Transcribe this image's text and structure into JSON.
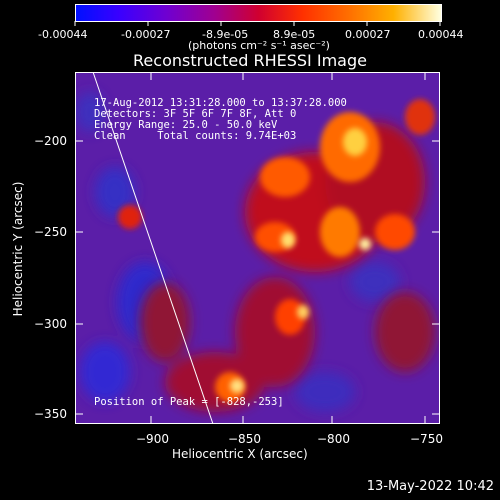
{
  "colorbar": {
    "tick_labels": [
      "-0.00044",
      "-0.00027",
      "-8.9e-05",
      "8.9e-05",
      "0.00027",
      "0.00044"
    ],
    "units": "(photons cm⁻² s⁻¹ asec⁻²)",
    "colors": [
      "#0000ff",
      "#7a00d9",
      "#b00080",
      "#ff2000",
      "#ff9a00",
      "#ffffd0"
    ]
  },
  "plot": {
    "title": "Reconstructed RHESSI Image",
    "xlabel": "Heliocentric X (arcsec)",
    "ylabel": "Heliocentric Y (arcsec)",
    "xticks": [
      "−900",
      "−850",
      "−800",
      "−750"
    ],
    "yticks": [
      "−200",
      "−250",
      "−300",
      "−350"
    ]
  },
  "info": {
    "line1": "17-Aug-2012 13:31:28.000 to 13:37:28.000",
    "line2": "Detectors: 3F 5F 6F 7F 8F, Att 0",
    "line3": "Energy Range: 25.0 - 50.0 keV",
    "line4": "Clean     Total counts: 9.74E+03",
    "peak": "Position of Peak = [-828,-253]"
  },
  "footer": {
    "timestamp": "13-May-2022 10:42"
  }
}
